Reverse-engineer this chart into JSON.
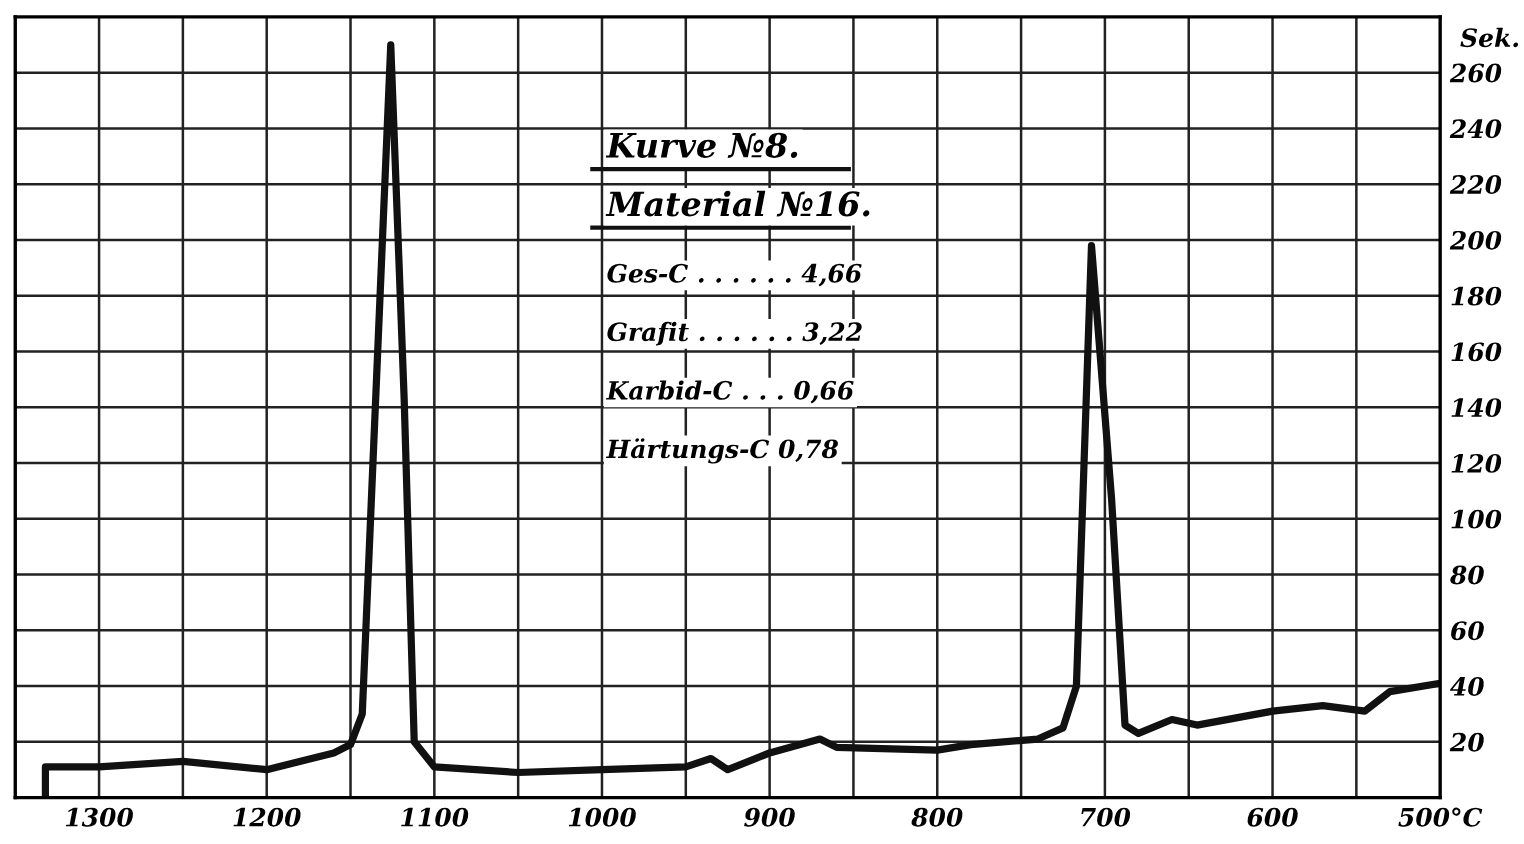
{
  "chart_data": {
    "type": "line",
    "ylabel": "Sek.",
    "x": [
      1332,
      1332,
      1300,
      1250,
      1200,
      1160,
      1150,
      1143,
      1126,
      1118,
      1112,
      1100,
      1050,
      1000,
      950,
      935,
      925,
      900,
      870,
      860,
      800,
      780,
      740,
      725,
      717,
      708,
      696,
      688,
      680,
      660,
      645,
      600,
      570,
      545,
      530,
      500
    ],
    "series": [
      {
        "color": "#111111",
        "values": [
          0,
          11,
          11,
          13,
          10,
          16,
          19,
          30,
          270,
          143,
          20,
          11,
          9,
          10,
          11,
          14,
          10,
          16,
          21,
          18,
          17,
          19,
          21,
          25,
          40,
          198,
          107,
          26,
          23,
          28,
          26,
          31,
          33,
          31,
          38,
          41
        ]
      }
    ],
    "xlim": [
      1350,
      500
    ],
    "xticks": [
      {
        "value": 1350,
        "label": null
      },
      1300,
      {
        "value": 1250,
        "label": null
      },
      1200,
      {
        "value": 1150,
        "label": null
      },
      1100,
      {
        "value": 1050,
        "label": null
      },
      1000,
      {
        "value": 950,
        "label": null
      },
      900,
      {
        "value": 850,
        "label": null
      },
      800,
      {
        "value": 750,
        "label": null
      },
      700,
      {
        "value": 650,
        "label": null
      },
      600,
      {
        "value": 550,
        "label": null
      },
      {
        "value": 500,
        "label": "500°C"
      }
    ],
    "ylim": [
      0,
      280
    ],
    "yticks": [
      20,
      40,
      60,
      80,
      100,
      120,
      140,
      160,
      180,
      200,
      220,
      240,
      260
    ],
    "grid": true,
    "line_style": "solid",
    "marker": "none",
    "annotations": [
      "Kurve №8.",
      "Material №16.",
      "Ges-C . . . . . . 4,66",
      "Grafit . . . . . . 3,22",
      "Karbid-C . . . 0,66",
      "Härtungs-C 0,78"
    ]
  }
}
